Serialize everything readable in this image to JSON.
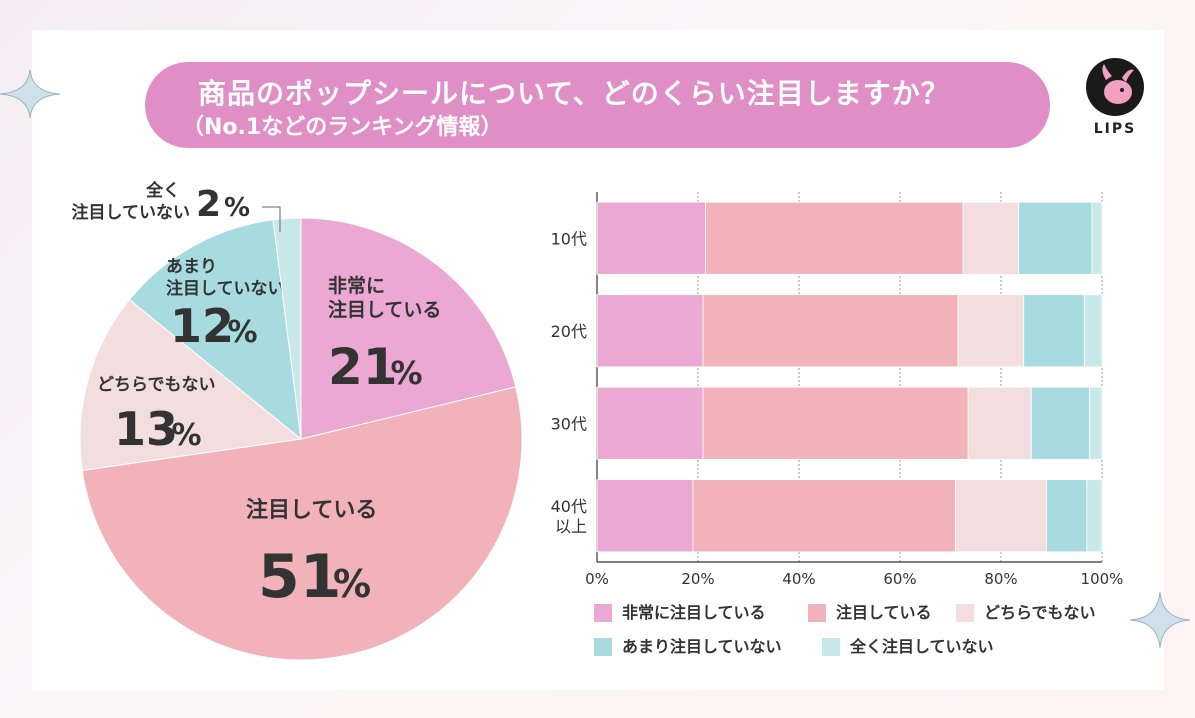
{
  "title": {
    "main": "商品のポップシールについて、どのくらい注目しますか？",
    "sub": "（No.1などのランキング情報）"
  },
  "logo": {
    "text": "LIPS",
    "icon": "deer-icon"
  },
  "colors": {
    "bg_pill": "#e08fc6",
    "very": "#eba8d3",
    "attention": "#f1b2ba",
    "neither": "#f3dedf",
    "little": "#a8dbe0",
    "none": "#c8e8ea"
  },
  "chart_data": [
    {
      "type": "pie",
      "slices": [
        {
          "label": [
            "非常に",
            "注目している"
          ],
          "value": 21,
          "value_text": "21",
          "unit": "%",
          "color": "#eba8d3"
        },
        {
          "label": [
            "注目している"
          ],
          "value": 51,
          "value_text": "51",
          "unit": "%",
          "color": "#f1b2ba"
        },
        {
          "label": [
            "どちらでもない"
          ],
          "value": 13,
          "value_text": "13",
          "unit": "%",
          "color": "#f3dedf"
        },
        {
          "label": [
            "あまり",
            "注目していない"
          ],
          "value": 12,
          "value_text": "12",
          "unit": "%",
          "color": "#a8dbe0"
        },
        {
          "label": [
            "全く",
            "注目していない"
          ],
          "value": 2,
          "value_text": "2",
          "unit": "%",
          "color": "#c8e8ea"
        }
      ]
    },
    {
      "type": "bar",
      "orientation": "horizontal",
      "stacked": true,
      "categories": [
        [
          "10代"
        ],
        [
          "20代"
        ],
        [
          "30代"
        ],
        [
          "40代",
          "以上"
        ]
      ],
      "x_ticks": [
        "0%",
        "20%",
        "40%",
        "60%",
        "80%",
        "100%"
      ],
      "xlim": [
        0,
        100
      ],
      "grid": true,
      "legend_position": "bottom",
      "series": [
        {
          "name": "非常に注目している",
          "color": "#eba8d3",
          "values": [
            21.5,
            21,
            21,
            19
          ]
        },
        {
          "name": "注目している",
          "color": "#f1b2ba",
          "values": [
            51,
            50.5,
            52.5,
            52
          ]
        },
        {
          "name": "どちらでもない",
          "color": "#f3dedf",
          "values": [
            11,
            13,
            12.5,
            18
          ]
        },
        {
          "name": "あまり注目していない",
          "color": "#a8dbe0",
          "values": [
            14.5,
            12,
            11.5,
            8
          ]
        },
        {
          "name": "全く注目していない",
          "color": "#c8e8ea",
          "values": [
            2,
            3.5,
            2.5,
            3
          ]
        }
      ]
    }
  ]
}
